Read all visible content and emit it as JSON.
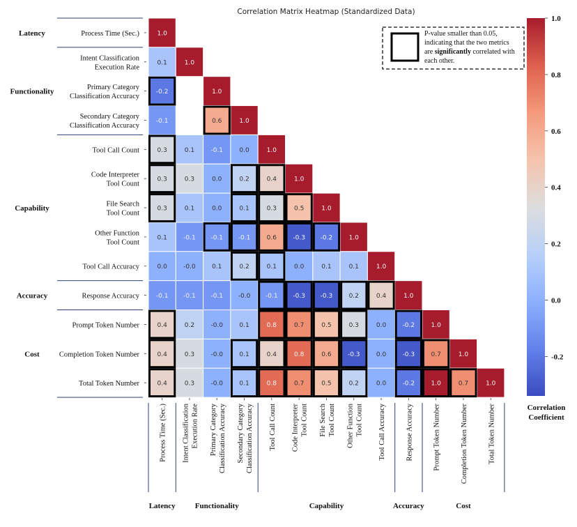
{
  "chart_data": {
    "type": "heatmap",
    "title": "Correlation Matrix Heatmap (Standardized Data)",
    "labels": [
      [
        "Process Time (Sec.)"
      ],
      [
        "Intent Classification",
        "Execution Rate"
      ],
      [
        "Primary Category",
        "Classification Accuracy"
      ],
      [
        "Secondary Category",
        "Classification Accuracy"
      ],
      [
        "Tool Call Count"
      ],
      [
        "Code Interpreter",
        "Tool Count"
      ],
      [
        "File Search",
        "Tool Count"
      ],
      [
        "Other Function",
        "Tool Count"
      ],
      [
        "Tool Call Accuracy"
      ],
      [
        "Response Accuracy"
      ],
      [
        "Prompt Token Number"
      ],
      [
        "Completion Token Number"
      ],
      [
        "Total Token Number"
      ]
    ],
    "groups": [
      {
        "name": "Latency",
        "start": 0,
        "end": 0
      },
      {
        "name": "Functionality",
        "start": 1,
        "end": 3
      },
      {
        "name": "Capability",
        "start": 4,
        "end": 8
      },
      {
        "name": "Accuracy",
        "start": 9,
        "end": 9
      },
      {
        "name": "Cost",
        "start": 10,
        "end": 12
      }
    ],
    "values": [
      [
        "1.0"
      ],
      [
        "0.1",
        "1.0"
      ],
      [
        "-0.2",
        null,
        "1.0"
      ],
      [
        "-0.1",
        null,
        "0.6",
        "1.0"
      ],
      [
        "0.3",
        "0.1",
        "-0.1",
        "0.0",
        "1.0"
      ],
      [
        "0.3",
        "0.3",
        "0.0",
        "0.2",
        "0.4",
        "1.0"
      ],
      [
        "0.3",
        "0.1",
        "0.0",
        "0.1",
        "0.3",
        "0.5",
        "1.0"
      ],
      [
        "0.1",
        "-0.1",
        "-0.1",
        "-0.1",
        "0.6",
        "-0.3",
        "-0.2",
        "1.0"
      ],
      [
        "0.0",
        "-0.0",
        "0.1",
        "0.2",
        "0.1",
        "0.0",
        "0.1",
        "0.1",
        "1.0"
      ],
      [
        "-0.1",
        "-0.1",
        "-0.1",
        "-0.0",
        "-0.1",
        "-0.3",
        "-0.3",
        "0.2",
        "0.4",
        "1.0"
      ],
      [
        "0.4",
        "0.2",
        "-0.0",
        "0.1",
        "0.8",
        "0.7",
        "0.5",
        "0.3",
        "0.0",
        "-0.2",
        "1.0"
      ],
      [
        "0.4",
        "0.3",
        "-0.0",
        "0.1",
        "0.4",
        "0.8",
        "0.6",
        "-0.3",
        "0.0",
        "-0.3",
        "0.7",
        "1.0"
      ],
      [
        "0.4",
        "0.3",
        "-0.0",
        "0.1",
        "0.8",
        "0.7",
        "0.5",
        "0.2",
        "0.0",
        "-0.2",
        "1.0",
        "0.7",
        "1.0"
      ]
    ],
    "significant": [
      [
        0
      ],
      [
        0,
        0
      ],
      [
        1,
        0,
        0
      ],
      [
        0,
        0,
        1,
        0
      ],
      [
        1,
        0,
        0,
        0,
        0
      ],
      [
        1,
        0,
        0,
        1,
        1,
        0
      ],
      [
        1,
        0,
        0,
        1,
        1,
        1,
        0
      ],
      [
        0,
        0,
        1,
        1,
        1,
        1,
        1,
        0
      ],
      [
        0,
        0,
        0,
        1,
        1,
        0,
        0,
        0,
        0
      ],
      [
        0,
        0,
        0,
        0,
        1,
        1,
        1,
        1,
        1,
        0
      ],
      [
        1,
        0,
        0,
        0,
        1,
        1,
        1,
        1,
        0,
        1,
        0
      ],
      [
        1,
        0,
        0,
        1,
        1,
        1,
        1,
        1,
        0,
        1,
        1,
        0
      ],
      [
        1,
        0,
        0,
        1,
        1,
        1,
        1,
        1,
        0,
        1,
        1,
        1,
        0
      ]
    ],
    "colorscale": "coolwarm",
    "vmin": -0.34,
    "vmax": 1.0,
    "colorbar": {
      "ticks": [
        "1.0",
        "0.8",
        "0.6",
        "0.4",
        "0.2",
        "0.0",
        "-0.2"
      ],
      "label": [
        "Correlation",
        "Coefficient"
      ]
    },
    "legend": {
      "lines": [
        "P-value smaller than 0.05,",
        "indicating that the two metrics"
      ],
      "line3_pre": "are ",
      "line3_bold": "significantly",
      "line3_post": " correlated with",
      "line4": "each other."
    }
  }
}
